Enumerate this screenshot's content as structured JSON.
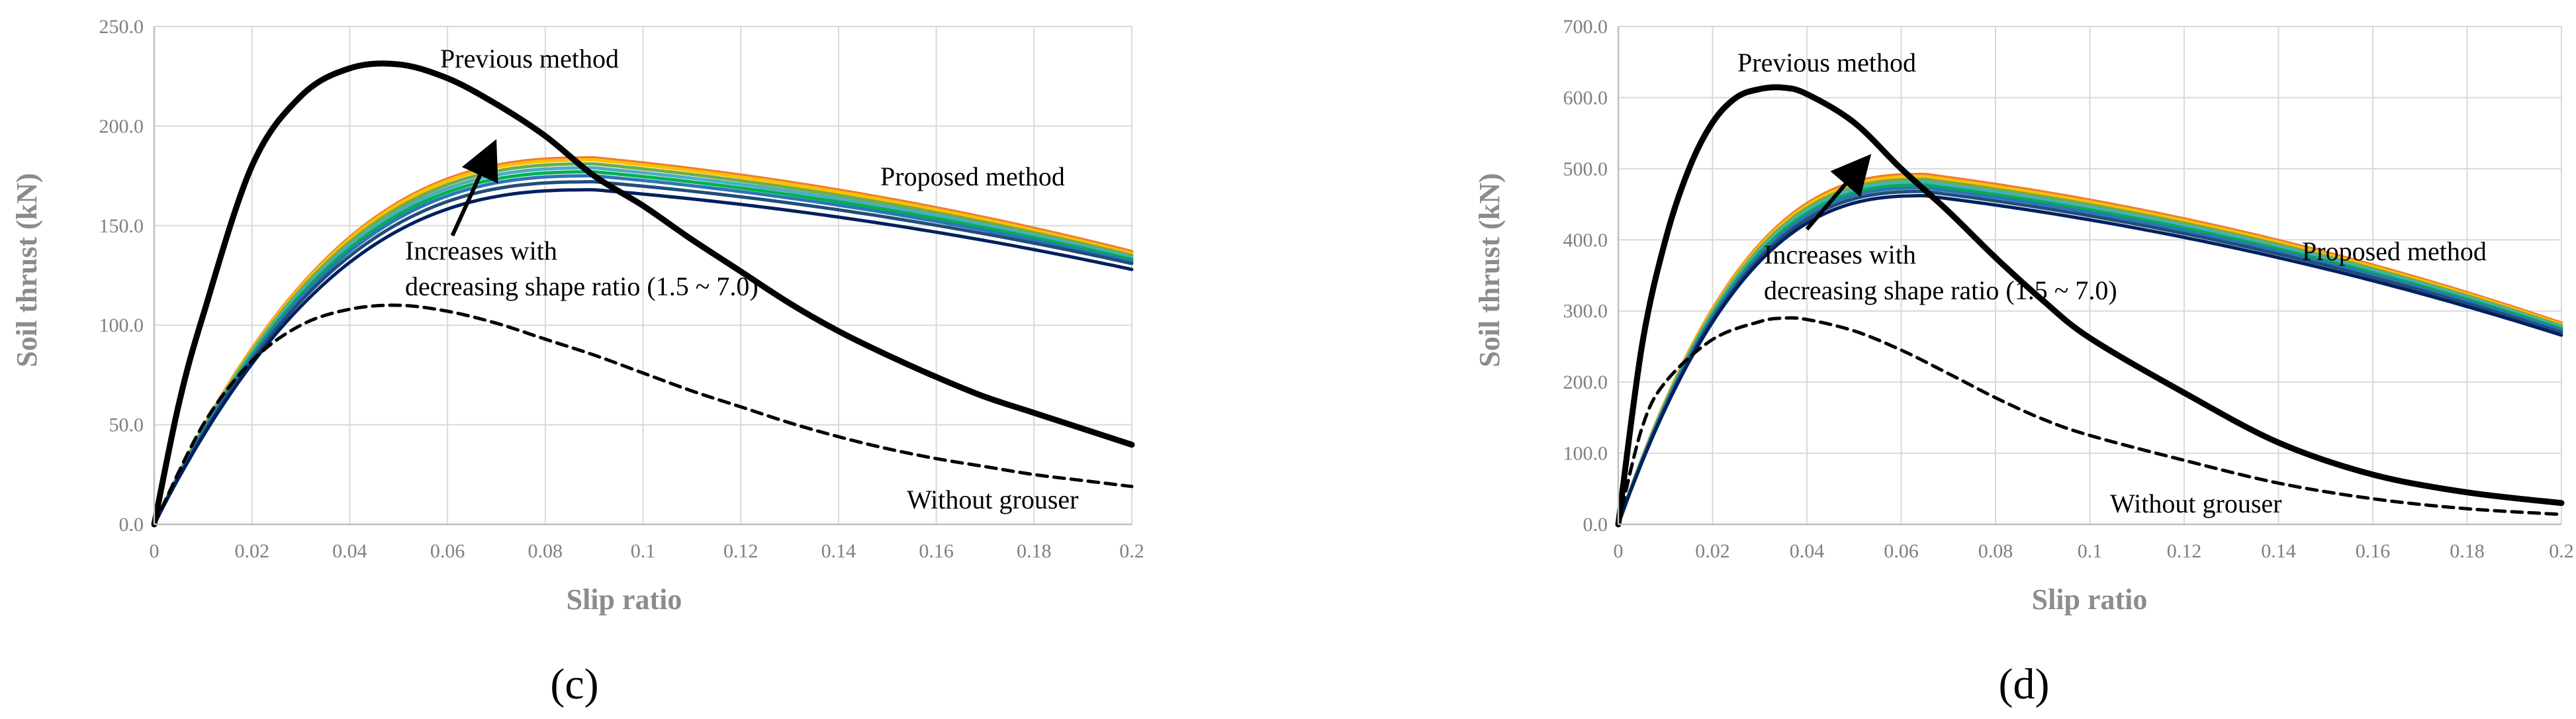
{
  "figure": {
    "panel_labels": [
      "(c)",
      "(d)"
    ]
  },
  "colors": {
    "grid": "#d9d9d9",
    "axis": "#bfbfbf",
    "previous": "#000000",
    "without": "#000000",
    "arrow": "#000000",
    "proposed_series": [
      "#002060",
      "#1f4e79",
      "#2e75b6",
      "#00b050",
      "#4bacc6",
      "#70ad47",
      "#ffc000",
      "#ed7d31"
    ]
  },
  "chart_data": [
    {
      "type": "line",
      "panel": "(c)",
      "xlabel": "Slip ratio",
      "ylabel": "Soil thrust (kN)",
      "xlim": [
        0,
        0.2
      ],
      "ylim": [
        0,
        250
      ],
      "xticks": [
        "0",
        "0.02",
        "0.04",
        "0.06",
        "0.08",
        "0.1",
        "0.12",
        "0.14",
        "0.16",
        "0.18",
        "0.2"
      ],
      "yticks": [
        "0.0",
        "50.0",
        "100.0",
        "150.0",
        "200.0",
        "250.0"
      ],
      "annotations": {
        "previous": "Previous method",
        "proposed": "Proposed method",
        "without": "Without grouser",
        "increases_line1": "Increases with",
        "increases_line2": "decreasing shape ratio (1.5 ~ 7.0)"
      },
      "series": [
        {
          "name": "Previous method",
          "style": "solid-black",
          "x": [
            0,
            0.005,
            0.01,
            0.02,
            0.03,
            0.04,
            0.05,
            0.06,
            0.07,
            0.08,
            0.09,
            0.1,
            0.11,
            0.12,
            0.13,
            0.14,
            0.15,
            0.16,
            0.17,
            0.18,
            0.19,
            0.2
          ],
          "y": [
            0,
            60,
            105,
            180,
            215,
            229,
            231,
            224,
            211,
            195,
            175,
            160,
            143,
            127,
            111,
            97,
            85,
            74,
            64,
            56,
            48,
            40
          ]
        },
        {
          "name": "Without grouser",
          "style": "dashed-black",
          "x": [
            0,
            0.01,
            0.02,
            0.03,
            0.04,
            0.05,
            0.06,
            0.07,
            0.08,
            0.09,
            0.1,
            0.11,
            0.12,
            0.13,
            0.14,
            0.15,
            0.16,
            0.17,
            0.18,
            0.19,
            0.2
          ],
          "y": [
            0,
            50,
            82,
            100,
            108,
            110,
            107,
            101,
            93,
            85,
            76,
            67,
            59,
            51,
            44,
            38,
            33,
            29,
            25,
            22,
            19
          ]
        },
        {
          "name": "Proposed 1",
          "style": "proposed",
          "peak": 168,
          "peak_x": 0.09,
          "end": 128
        },
        {
          "name": "Proposed 2",
          "style": "proposed",
          "peak": 172,
          "peak_x": 0.09,
          "end": 131
        },
        {
          "name": "Proposed 3",
          "style": "proposed",
          "peak": 175,
          "peak_x": 0.09,
          "end": 132
        },
        {
          "name": "Proposed 4",
          "style": "proposed",
          "peak": 177,
          "peak_x": 0.09,
          "end": 133
        },
        {
          "name": "Proposed 5",
          "style": "proposed",
          "peak": 179,
          "peak_x": 0.09,
          "end": 134
        },
        {
          "name": "Proposed 6",
          "style": "proposed",
          "peak": 181,
          "peak_x": 0.09,
          "end": 135
        },
        {
          "name": "Proposed 7",
          "style": "proposed",
          "peak": 183,
          "peak_x": 0.09,
          "end": 136
        },
        {
          "name": "Proposed 8",
          "style": "proposed",
          "peak": 184,
          "peak_x": 0.09,
          "end": 137
        }
      ],
      "arrow": {
        "from": [
          0.061,
          145
        ],
        "to": [
          0.069,
          188
        ]
      }
    },
    {
      "type": "line",
      "panel": "(d)",
      "xlabel": "Slip ratio",
      "ylabel": "Soil thrust (kN)",
      "xlim": [
        0,
        0.2
      ],
      "ylim": [
        0,
        700
      ],
      "xticks": [
        "0",
        "0.02",
        "0.04",
        "0.06",
        "0.08",
        "0.1",
        "0.12",
        "0.14",
        "0.16",
        "0.18",
        "0.2"
      ],
      "yticks": [
        "0.0",
        "100.0",
        "200.0",
        "300.0",
        "400.0",
        "500.0",
        "600.0",
        "700.0"
      ],
      "annotations": {
        "previous": "Previous method",
        "proposed": "Proposed method",
        "without": "Without grouser",
        "increases_line1": "Increases with",
        "increases_line2": "decreasing shape ratio (1.5 ~ 7.0)"
      },
      "series": [
        {
          "name": "Previous method",
          "style": "solid-black",
          "x": [
            0,
            0.005,
            0.01,
            0.015,
            0.02,
            0.025,
            0.03,
            0.035,
            0.04,
            0.05,
            0.06,
            0.07,
            0.08,
            0.09,
            0.1,
            0.12,
            0.14,
            0.16,
            0.18,
            0.2
          ],
          "y": [
            0,
            250,
            400,
            500,
            565,
            600,
            612,
            614,
            605,
            565,
            500,
            440,
            375,
            315,
            262,
            185,
            115,
            70,
            45,
            30
          ]
        },
        {
          "name": "Without grouser",
          "style": "dashed-black",
          "x": [
            0,
            0.005,
            0.01,
            0.02,
            0.03,
            0.035,
            0.04,
            0.05,
            0.06,
            0.07,
            0.08,
            0.09,
            0.1,
            0.12,
            0.14,
            0.16,
            0.18,
            0.2
          ],
          "y": [
            0,
            135,
            200,
            260,
            285,
            290,
            288,
            272,
            245,
            212,
            178,
            148,
            125,
            90,
            58,
            36,
            22,
            14
          ]
        },
        {
          "name": "Proposed 1",
          "style": "proposed",
          "peak": 462,
          "peak_x": 0.065,
          "end": 266
        },
        {
          "name": "Proposed 2",
          "style": "proposed",
          "peak": 468,
          "peak_x": 0.065,
          "end": 270
        },
        {
          "name": "Proposed 3",
          "style": "proposed",
          "peak": 473,
          "peak_x": 0.065,
          "end": 273
        },
        {
          "name": "Proposed 4",
          "style": "proposed",
          "peak": 477,
          "peak_x": 0.065,
          "end": 275
        },
        {
          "name": "Proposed 5",
          "style": "proposed",
          "peak": 481,
          "peak_x": 0.065,
          "end": 277
        },
        {
          "name": "Proposed 6",
          "style": "proposed",
          "peak": 485,
          "peak_x": 0.065,
          "end": 279
        },
        {
          "name": "Proposed 7",
          "style": "proposed",
          "peak": 489,
          "peak_x": 0.065,
          "end": 281
        },
        {
          "name": "Proposed 8",
          "style": "proposed",
          "peak": 492,
          "peak_x": 0.065,
          "end": 283
        }
      ],
      "arrow": {
        "from": [
          0.04,
          415
        ],
        "to": [
          0.052,
          508
        ]
      }
    }
  ]
}
